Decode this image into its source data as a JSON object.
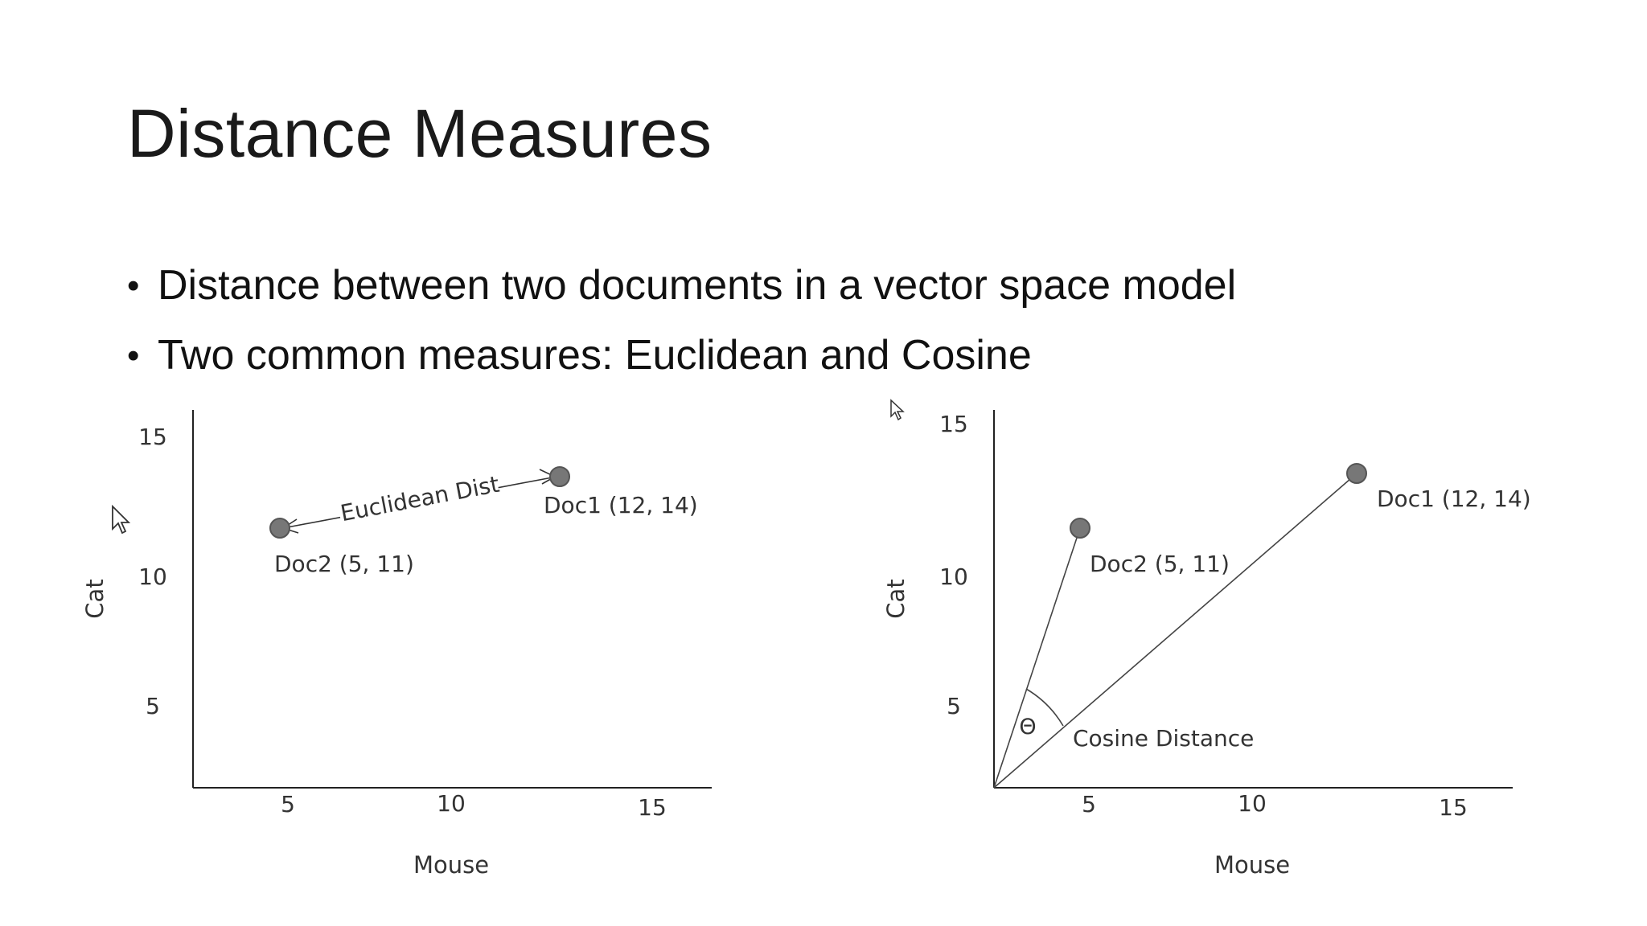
{
  "slide": {
    "title": "Distance Measures",
    "bullets": [
      "Distance between two documents in a vector space model",
      "Two common measures: Euclidean and Cosine"
    ]
  },
  "chart_data": [
    {
      "type": "scatter",
      "xlabel": "Mouse",
      "ylabel": "Cat",
      "x_ticks": [
        "5",
        "10",
        "15"
      ],
      "y_ticks": [
        "5",
        "10",
        "15"
      ],
      "xlim": [
        0,
        16
      ],
      "ylim": [
        0,
        16
      ],
      "points": [
        {
          "label": "Doc1 (12, 14)",
          "x": 12,
          "y": 14
        },
        {
          "label": "Doc2 (5, 11)",
          "x": 5,
          "y": 11
        }
      ],
      "annotation": "Euclidean Dist"
    },
    {
      "type": "scatter",
      "xlabel": "Mouse",
      "ylabel": "Cat",
      "x_ticks": [
        "5",
        "10",
        "15"
      ],
      "y_ticks": [
        "5",
        "10",
        "15"
      ],
      "xlim": [
        0,
        16
      ],
      "ylim": [
        0,
        16
      ],
      "points": [
        {
          "label": "Doc1 (12, 14)",
          "x": 12,
          "y": 14
        },
        {
          "label": "Doc2 (5, 11)",
          "x": 5,
          "y": 11
        }
      ],
      "angle_symbol": "Θ",
      "annotation": "Cosine Distance"
    }
  ],
  "icons": {
    "cursor": "mouse-pointer-icon"
  }
}
